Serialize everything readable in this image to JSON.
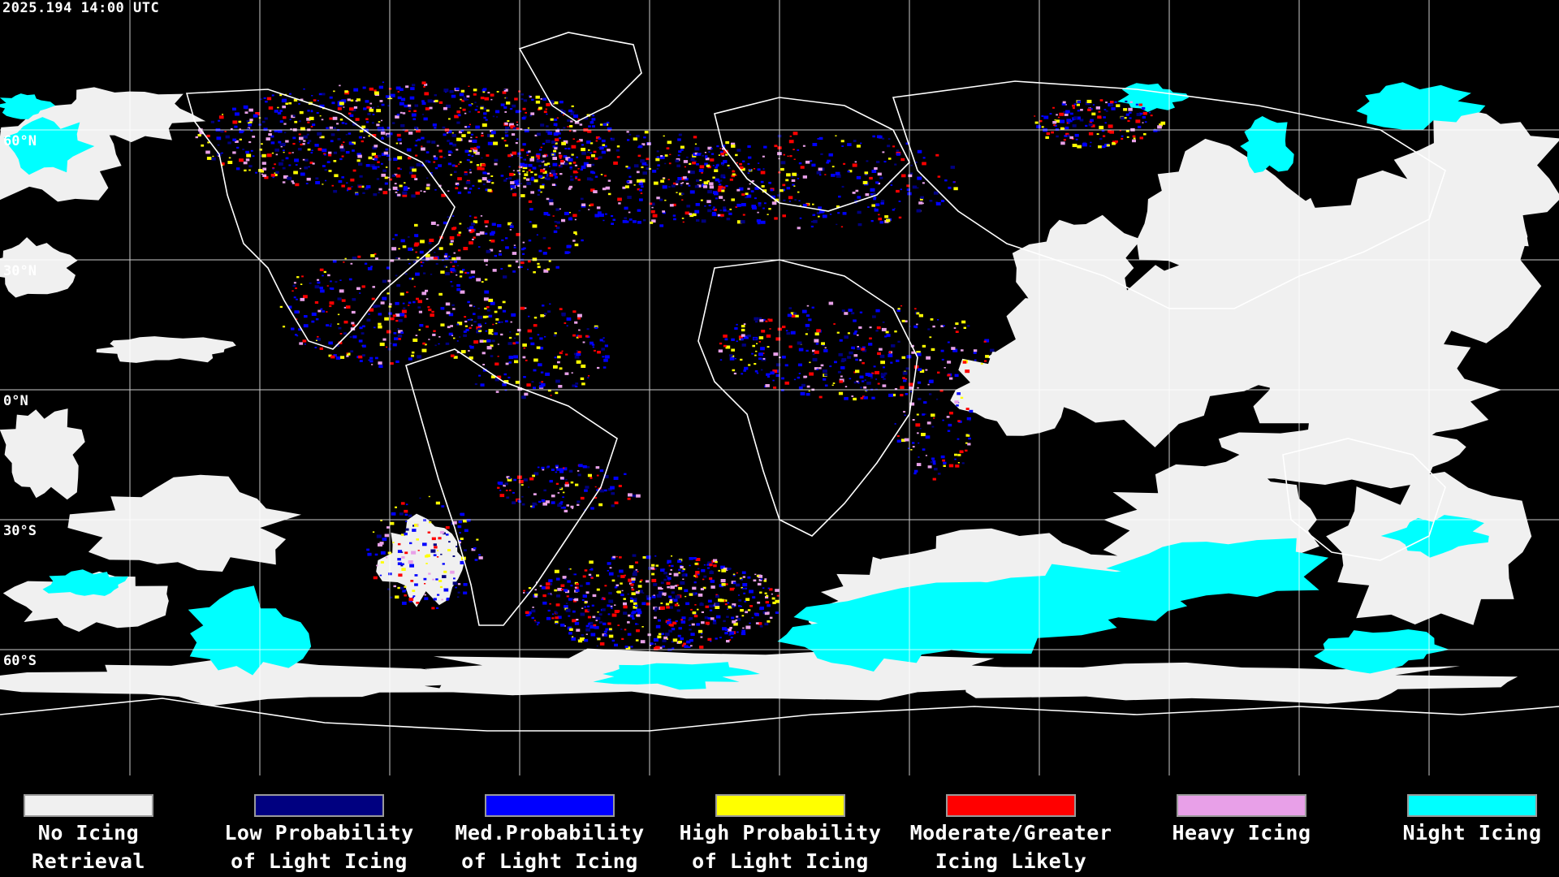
{
  "title": "2025.194 14:00 UTC",
  "latitude_labels": [
    "60°N",
    "30°N",
    "0°N",
    "30°S",
    "60°S"
  ],
  "legend": [
    {
      "line1": "No Icing",
      "line2": "Retrieval",
      "color": "#f0f0f0"
    },
    {
      "line1": "Low Probability",
      "line2": "of Light Icing",
      "color": "#000080"
    },
    {
      "line1": "Med.Probability",
      "line2": "of Light Icing",
      "color": "#0000ff"
    },
    {
      "line1": "High Probability",
      "line2": "of Light Icing",
      "color": "#ffff00"
    },
    {
      "line1": "Moderate/Greater",
      "line2": "Icing Likely",
      "color": "#ff0000"
    },
    {
      "line1": "Heavy Icing",
      "line2": "",
      "color": "#e8a0e8"
    },
    {
      "line1": "Night Icing",
      "line2": "",
      "color": "#00ffff"
    }
  ],
  "colors": {
    "background": "#000000",
    "coastline": "#ffffff",
    "gridline": "#ffffff"
  }
}
